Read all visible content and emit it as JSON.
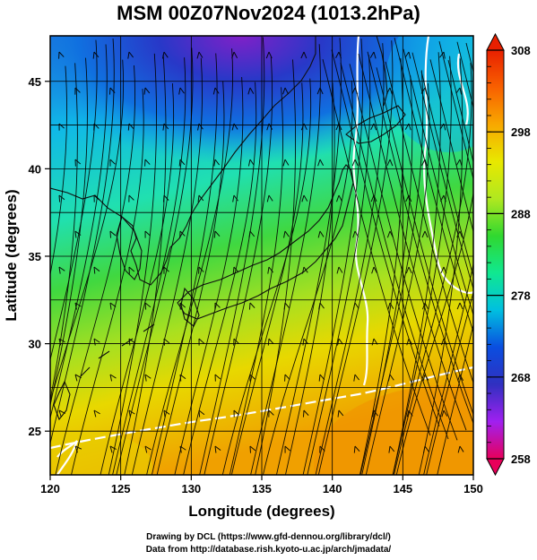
{
  "title": "MSM 00Z07Nov2024 (1013.2hPa)",
  "credit_line1": "Drawing by DCL (https://www.gfd-dennou.org/library/dcl/)",
  "credit_line2": "Data from http://database.rish.kyoto-u.ac.jp/arch/jmadata/",
  "map": {
    "x_range": [
      120,
      150
    ],
    "y_range": [
      22.5,
      47.6
    ],
    "x_ticks": [
      "120",
      "125",
      "130",
      "135",
      "140",
      "145",
      "150"
    ],
    "y_ticks": [
      "25",
      "30",
      "35",
      "40",
      "45"
    ],
    "xlabel": "Longitude (degrees)",
    "ylabel": "Latitude  (degrees)",
    "grid": true
  },
  "colorbar": {
    "range": [
      258,
      308
    ],
    "tick_labels": [
      "308",
      "298",
      "288",
      "278",
      "268",
      "258"
    ],
    "colors": [
      "#e8005a",
      "#a020f0",
      "#3030c0",
      "#0a4ee0",
      "#00c0e0",
      "#10e890",
      "#30d830",
      "#b0e820",
      "#e8e800",
      "#f8a800",
      "#f86000",
      "#e82000"
    ]
  }
}
